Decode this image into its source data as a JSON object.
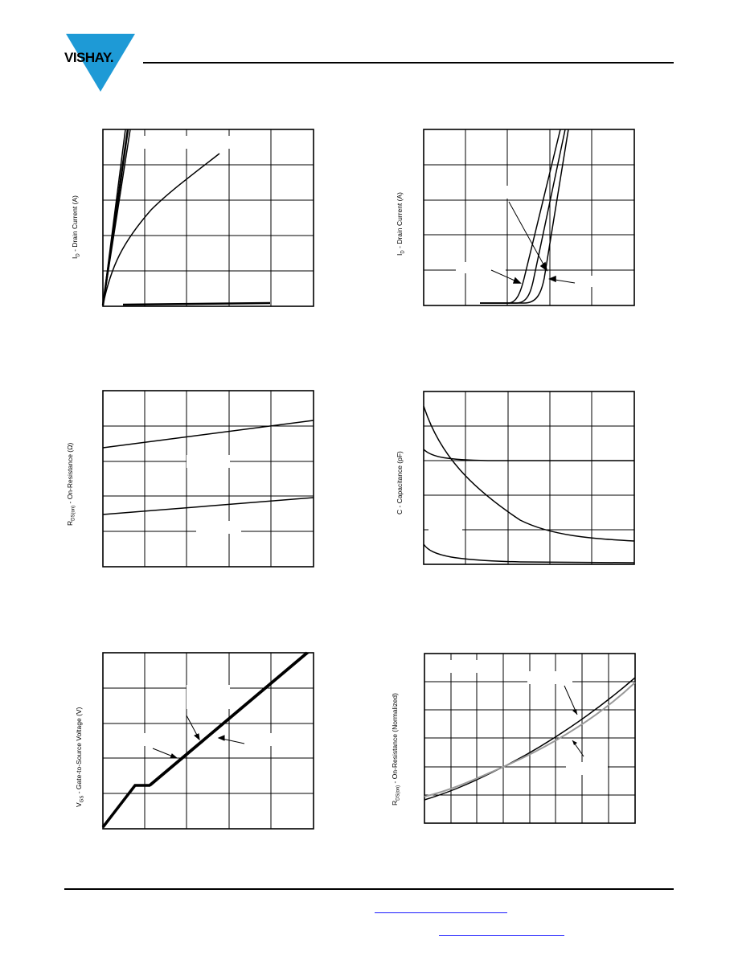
{
  "header": {
    "logo_text": "VISHAY."
  },
  "charts": {
    "chart1": {
      "ylabel": "I",
      "ylabel_sub": "D",
      "ylabel_rest": " - Drain Current (A)"
    },
    "chart2": {
      "ylabel": "I",
      "ylabel_sub": "D",
      "ylabel_rest": " - Drain Current (A)"
    },
    "chart3": {
      "ylabel": "R",
      "ylabel_sub": "DS(on)",
      "ylabel_rest": " - On-Resistance (Ω)"
    },
    "chart4": {
      "ylabel": "C - Capacitance (pF)"
    },
    "chart5": {
      "ylabel": "V",
      "ylabel_sub": "GS",
      "ylabel_rest": " - Gate-to-Source Voltage (V)"
    },
    "chart6": {
      "ylabel": "R",
      "ylabel_sub": "DS(on)",
      "ylabel_rest": " - On-Resistance (Normalized)"
    }
  },
  "colors": {
    "logo_blue": "#1e9ad6",
    "link": "#1a1aff",
    "gray_curve": "#999999"
  }
}
